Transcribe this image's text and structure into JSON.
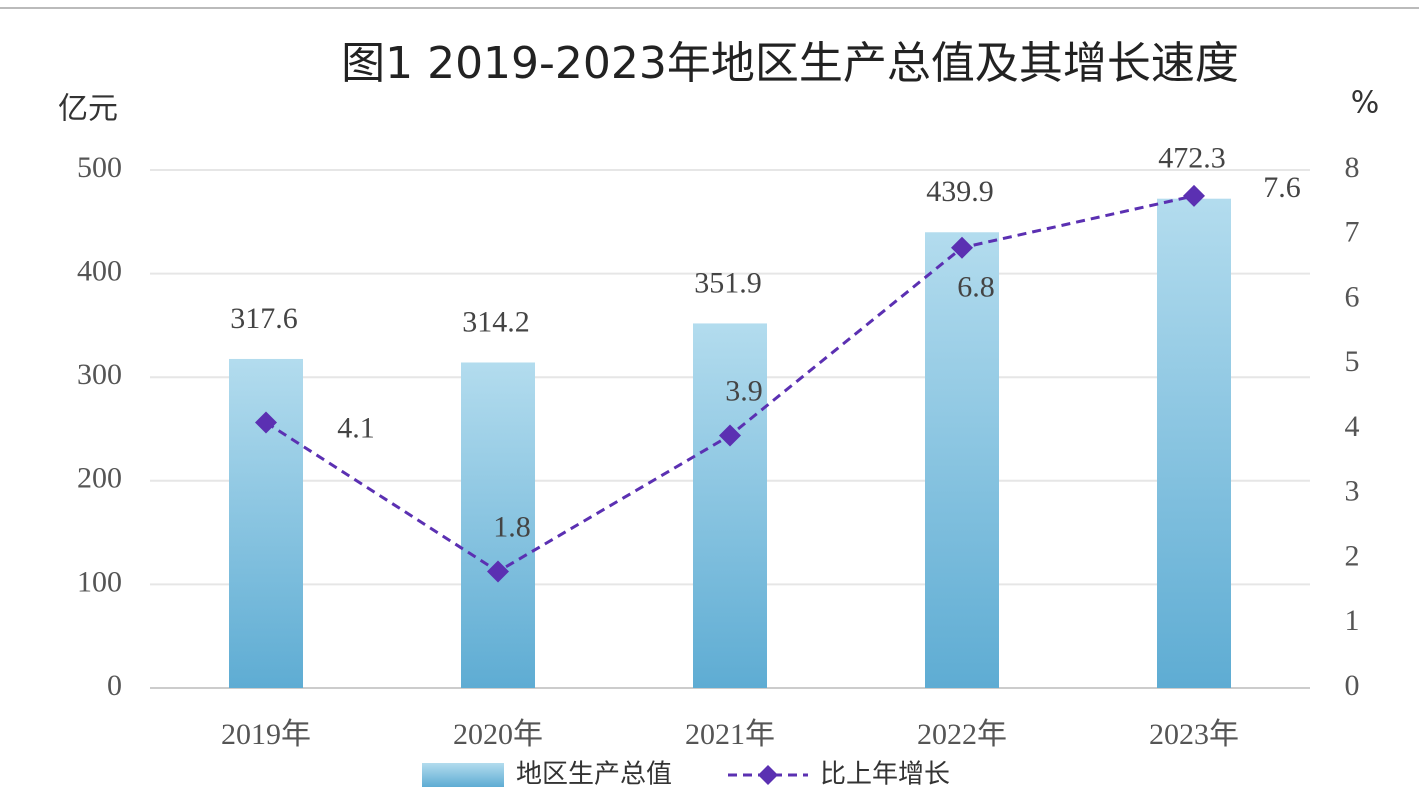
{
  "chart_data": {
    "type": "bar",
    "title": "图1 2019-2023年地区生产总值及其增长速度",
    "y_label": "亿元",
    "y2_label": "%",
    "categories": [
      "2019年",
      "2020年",
      "2021年",
      "2022年",
      "2023年"
    ],
    "series": [
      {
        "name": "地区生产总值",
        "type": "bar",
        "color": "#7bbcdb",
        "values": [
          317.6,
          314.2,
          351.9,
          439.9,
          472.3
        ]
      },
      {
        "name": "比上年增长",
        "type": "line",
        "axis": "y2",
        "color": "#5b30b2",
        "values": [
          4.1,
          1.8,
          3.9,
          6.8,
          7.6
        ]
      }
    ],
    "ylim": [
      0,
      500
    ],
    "yticks": [
      0,
      100,
      200,
      300,
      400,
      500
    ],
    "y2lim": [
      0,
      8
    ],
    "y2ticks": [
      0,
      1,
      2,
      3,
      4,
      5,
      6,
      7,
      8
    ],
    "grid": true,
    "legend": "bottom"
  }
}
